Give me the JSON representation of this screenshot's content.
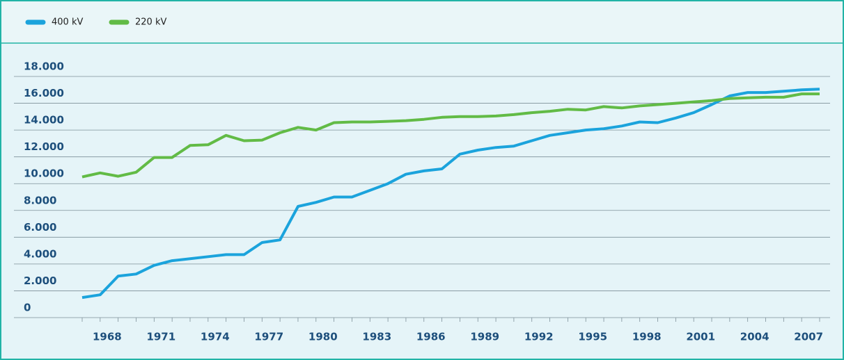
{
  "chart_data": {
    "type": "line",
    "categories": [
      null,
      "1968",
      null,
      null,
      "1971",
      null,
      null,
      "1974",
      null,
      null,
      "1977",
      null,
      null,
      "1980",
      null,
      null,
      "1983",
      null,
      null,
      "1986",
      null,
      null,
      "1989",
      null,
      null,
      "1992",
      null,
      null,
      "1995",
      null,
      null,
      "1998",
      null,
      null,
      "2001",
      null,
      null,
      "2004",
      null,
      null,
      "2007",
      null
    ],
    "series": [
      {
        "name": "400 kV",
        "color": "#1ba3dc",
        "values": [
          1500,
          1700,
          3100,
          3250,
          3900,
          4250,
          4400,
          4550,
          4700,
          4700,
          5600,
          5800,
          8300,
          8600,
          9000,
          9000,
          9500,
          10000,
          10700,
          10950,
          11100,
          12200,
          12500,
          12700,
          12800,
          13200,
          13600,
          13800,
          14000,
          14100,
          14300,
          14600,
          14550,
          14900,
          15300,
          15900,
          16550,
          16800,
          16800,
          16900,
          17000,
          17050
        ]
      },
      {
        "name": "220 kV",
        "color": "#62bb46",
        "values": [
          10500,
          10800,
          10550,
          10850,
          11950,
          11950,
          12850,
          12900,
          13600,
          13200,
          13250,
          13800,
          14200,
          14000,
          14550,
          14600,
          14600,
          14650,
          14700,
          14800,
          14950,
          15000,
          15000,
          15050,
          15150,
          15300,
          15400,
          15550,
          15500,
          15750,
          15650,
          15800,
          15900,
          16000,
          16100,
          16200,
          16350,
          16400,
          16450,
          16450,
          16700,
          16700
        ]
      }
    ],
    "ylim": [
      0,
      18000
    ],
    "yticks": [
      {
        "value": 0,
        "label": "0"
      },
      {
        "value": 2000,
        "label": "2.000"
      },
      {
        "value": 4000,
        "label": "4.000"
      },
      {
        "value": 6000,
        "label": "6.000"
      },
      {
        "value": 8000,
        "label": "8.000"
      },
      {
        "value": 10000,
        "label": "10.000"
      },
      {
        "value": 12000,
        "label": "12.000"
      },
      {
        "value": 14000,
        "label": "14.000"
      },
      {
        "value": 16000,
        "label": "16.000"
      },
      {
        "value": 18000,
        "label": "18.000"
      }
    ],
    "grid": true,
    "legend": "top-left"
  }
}
